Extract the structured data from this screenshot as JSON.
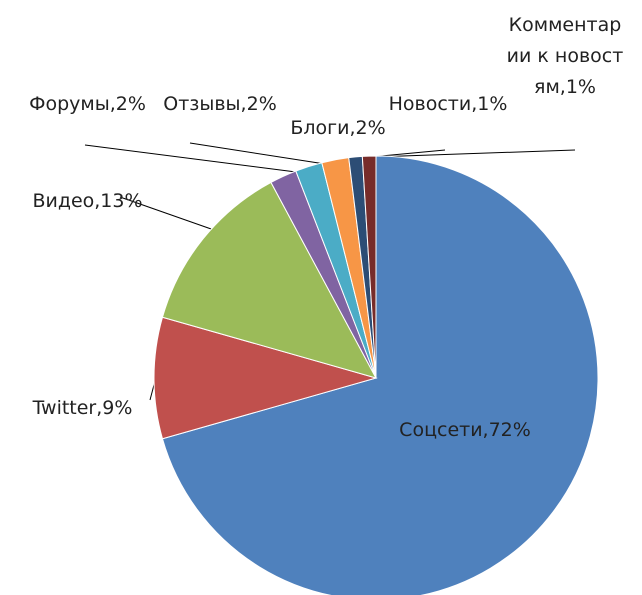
{
  "chart_data": {
    "type": "pie",
    "values": [
      72,
      9,
      13,
      2,
      2,
      2,
      1,
      1
    ],
    "value_labels": [
      "Соцсети,72%",
      "Twitter,9%",
      "Видео,13%",
      "Форумы,2%",
      "Отзывы,2%",
      "Блоги,2%",
      "Новости,1%",
      "Комментарии к новостям,1%"
    ],
    "colors": [
      "#4f81bd",
      "#c0504d",
      "#9bbb59",
      "#8064a2",
      "#4bacc6",
      "#f79646",
      "#2c4d75",
      "#772c2a"
    ]
  }
}
